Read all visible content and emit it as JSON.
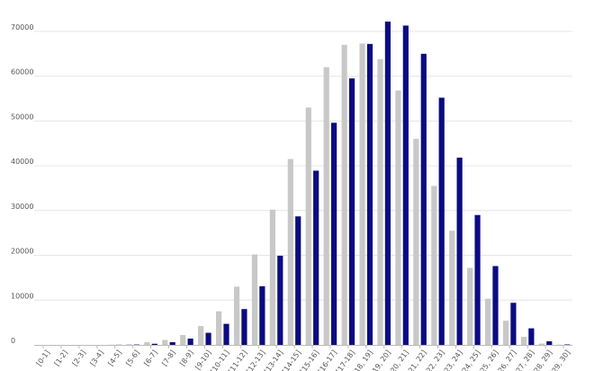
{
  "chart_data": {
    "type": "bar",
    "categories": [
      "[0-1]",
      "[1-2]",
      "[2-3]",
      "[3-4]",
      "[4-5]",
      "[5-6]",
      "[6-7]",
      "[7-8]",
      "[8-9]",
      "[9-10]",
      "[10-11]",
      "[11-12]",
      "[12-13]",
      "[13-14]",
      "[14-15]",
      "[15-16]",
      "[16-17]",
      "[17-18]",
      "[18, 19]",
      "[19, 20]",
      "[20, 21]",
      "[21, 22]",
      "[22, 23]",
      "[23, 24]",
      "[24, 25]",
      "[25, 26]",
      "[26, 27]",
      "[27, 28]",
      "[28, 29]",
      "[29, 30]"
    ],
    "series": [
      {
        "values": [
          0,
          0,
          0,
          0,
          50,
          150,
          600,
          1100,
          2200,
          4200,
          7500,
          13000,
          20200,
          30200,
          41500,
          53000,
          62000,
          67000,
          67300,
          63800,
          56800,
          46000,
          35500,
          25500,
          17200,
          10300,
          5400,
          1800,
          300,
          50
        ],
        "color": "#c8c8c8"
      },
      {
        "values": [
          0,
          0,
          0,
          0,
          30,
          80,
          250,
          600,
          1400,
          2700,
          4700,
          8000,
          13100,
          19900,
          28700,
          38900,
          49600,
          59500,
          67200,
          72200,
          71300,
          65000,
          55200,
          41800,
          29000,
          17600,
          9400,
          3700,
          800,
          100
        ],
        "color": "#0c0c80"
      }
    ],
    "ylim": [
      0,
      75000
    ],
    "yticks": [
      "0",
      "10000",
      "20000",
      "30000",
      "40000",
      "50000",
      "60000",
      "70000"
    ],
    "ytick_values": [
      0,
      10000,
      20000,
      30000,
      40000,
      50000,
      60000,
      70000
    ],
    "grid": true,
    "legend": "none"
  }
}
